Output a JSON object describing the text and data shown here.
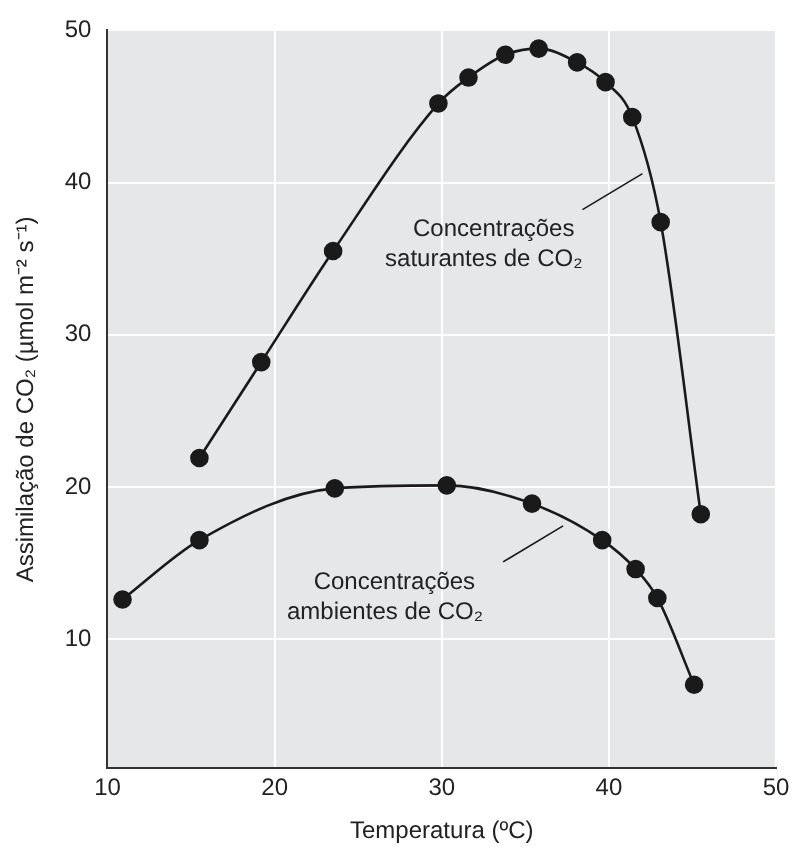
{
  "chart_data": {
    "type": "line",
    "xlabel": "Temperatura (ºC)",
    "ylabel": "Assimilação de CO₂ (µmol m⁻² s⁻¹)",
    "xlim": [
      10,
      50
    ],
    "xticks": [
      10,
      20,
      30,
      40,
      50
    ],
    "ylim": [
      1.5,
      50
    ],
    "yticks": [
      10,
      20,
      30,
      40,
      50
    ],
    "grid": true,
    "marker": "circle",
    "line_style": "solid",
    "series": [
      {
        "name": "Concentrações saturantes de CO₂",
        "color": "#1a1a1a",
        "x": [
          15.5,
          19.2,
          23.5,
          29.8,
          31.6,
          33.8,
          35.8,
          38.1,
          39.8,
          41.4,
          43.1,
          45.5
        ],
        "values": [
          21.9,
          28.2,
          35.5,
          45.2,
          46.9,
          48.4,
          48.8,
          47.9,
          46.6,
          44.3,
          37.4,
          18.2
        ]
      },
      {
        "name": "Concentrações ambientes de CO₂",
        "color": "#1a1a1a",
        "x": [
          10.9,
          15.5,
          23.6,
          30.3,
          35.4,
          39.6,
          41.6,
          42.9,
          45.1
        ],
        "values": [
          12.6,
          16.5,
          19.9,
          20.1,
          18.9,
          16.5,
          14.6,
          12.7,
          7.0
        ]
      }
    ]
  }
}
